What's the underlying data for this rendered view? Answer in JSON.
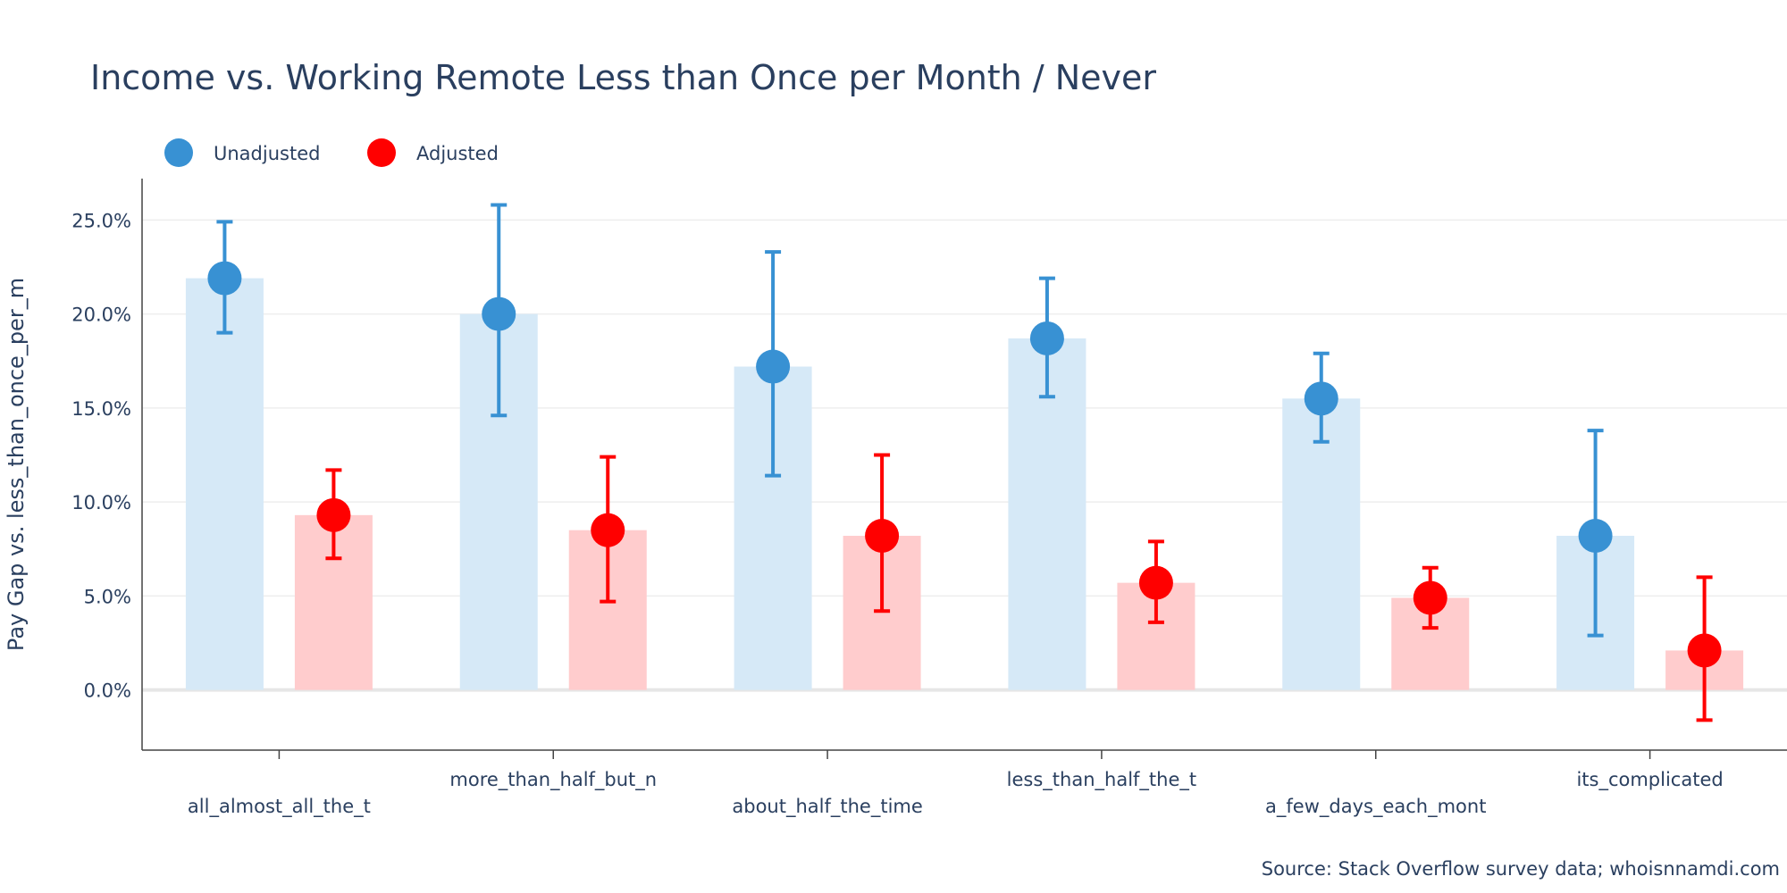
{
  "chart_data": {
    "type": "bar",
    "title": "Income vs. Working Remote Less than Once per Month / Never",
    "xlabel": "",
    "ylabel": "Pay Gap vs. less_than_once_per_m",
    "ylim": [
      -3.2,
      27.2
    ],
    "yticks": [
      0,
      5,
      10,
      15,
      20,
      25
    ],
    "ytick_labels": [
      "0.0%",
      "5.0%",
      "10.0%",
      "15.0%",
      "20.0%",
      "25.0%"
    ],
    "grid": true,
    "legend": "top-left, horizontal",
    "categories": [
      "all_almost_all_the_t",
      "more_than_half_but_n",
      "about_half_the_time",
      "less_than_half_the_t",
      "a_few_days_each_mont",
      "its_complicated"
    ],
    "series": [
      {
        "name": "Unadjusted",
        "color": "#3891d3",
        "bar_color": "#d6e9f7",
        "values": [
          21.9,
          20.0,
          17.2,
          18.7,
          15.5,
          8.2
        ],
        "error_low": [
          19.0,
          14.6,
          11.4,
          15.6,
          13.2,
          2.9
        ],
        "error_high": [
          24.9,
          25.8,
          23.3,
          21.9,
          17.9,
          13.8
        ]
      },
      {
        "name": "Adjusted",
        "color": "#ff0000",
        "bar_color": "#ffcccd",
        "values": [
          9.3,
          8.5,
          8.2,
          5.7,
          4.9,
          2.1
        ],
        "error_low": [
          7.0,
          4.7,
          4.2,
          3.6,
          3.3,
          -1.6
        ],
        "error_high": [
          11.7,
          12.4,
          12.5,
          7.9,
          6.5,
          6.0
        ]
      }
    ],
    "annotation": "Source: Stack Overflow survey data; whoisnnamdi.com"
  }
}
